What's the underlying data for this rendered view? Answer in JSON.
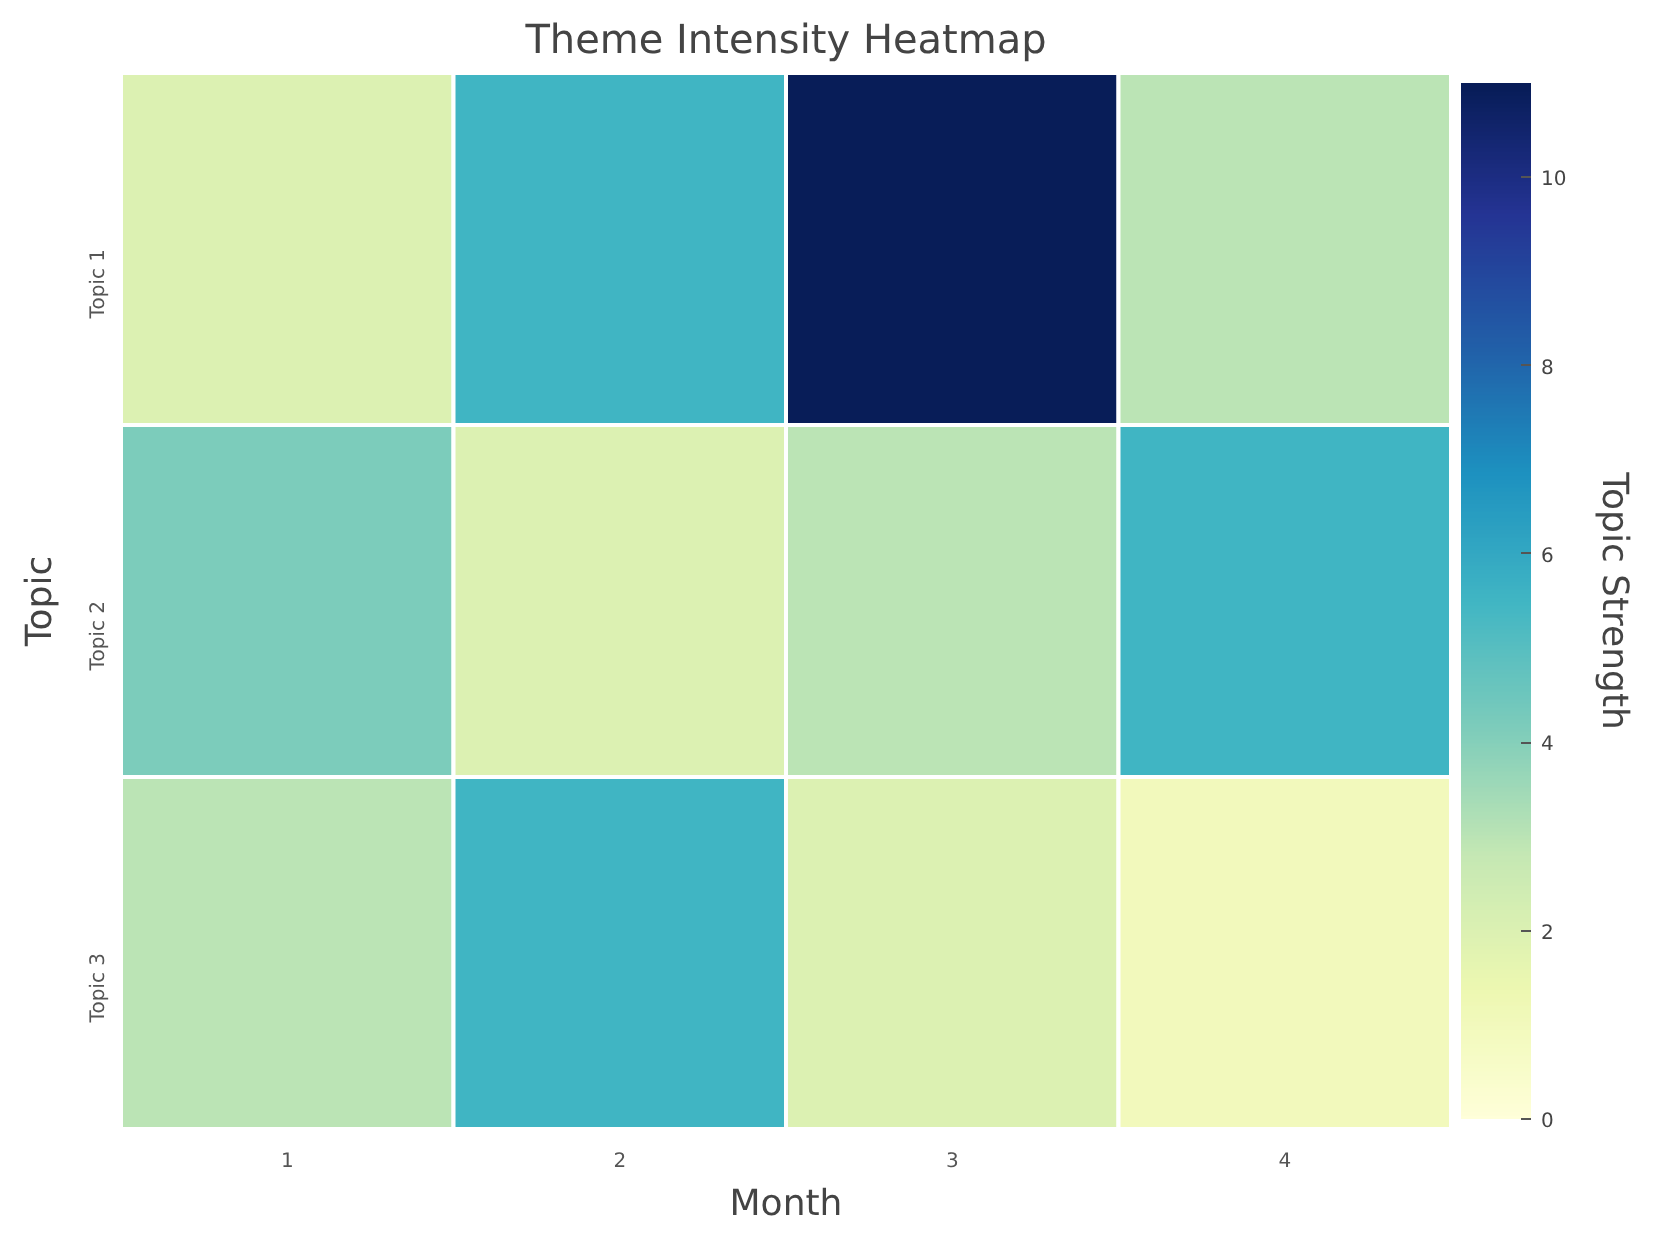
{
  "chart_data": {
    "type": "heatmap",
    "title": "Theme Intensity Heatmap",
    "xlabel": "Month",
    "ylabel": "Topic",
    "clabel": "Topic Strength",
    "categories": [
      "1",
      "2",
      "3",
      "4"
    ],
    "y_categories": [
      "Topic 1",
      "Topic 2",
      "Topic 3"
    ],
    "cells": [
      [
        2,
        5.5,
        11,
        3
      ],
      [
        4.2,
        2,
        3,
        5.5
      ],
      [
        3,
        5.5,
        2,
        1
      ]
    ],
    "clim": [
      0,
      11
    ],
    "cticks": [
      0,
      2,
      4,
      6,
      8,
      10
    ]
  }
}
